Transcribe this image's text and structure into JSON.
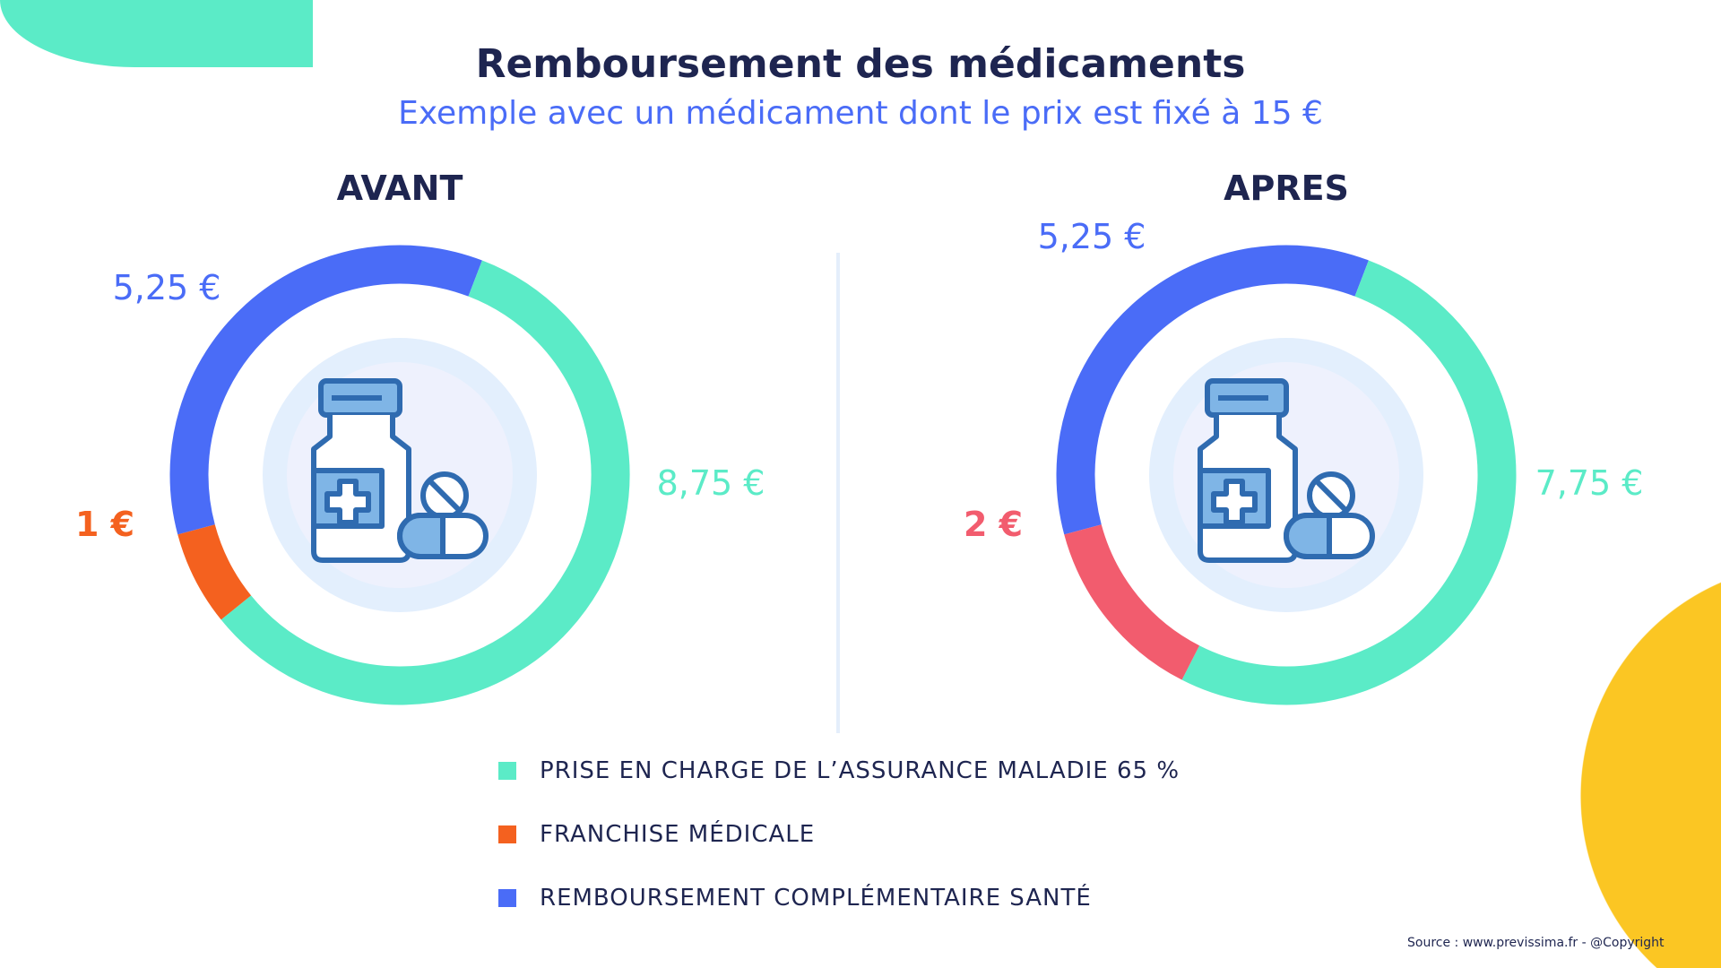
{
  "title": "Remboursement des médicaments",
  "subtitle": "Exemple avec un médicament dont le prix est fixé à 15 €",
  "colors": {
    "teal": "#5BEBC7",
    "orange": "#F4611F",
    "blue": "#4A6CF7",
    "red": "#F25C6E",
    "navy": "#1E2550",
    "yellow": "#FBC623"
  },
  "chart_data": [
    {
      "type": "pie",
      "title": "AVANT",
      "unit": "€",
      "total": 15,
      "slices": [
        {
          "name": "Remboursement complémentaire santé",
          "value": 5.25,
          "label": "5,25 €",
          "color": "#4A6CF7"
        },
        {
          "name": "Prise en charge de l'Assurance Maladie 65 %",
          "value": 8.75,
          "label": "8,75 €",
          "color": "#5BEBC7"
        },
        {
          "name": "Franchise médicale",
          "value": 1,
          "label": "1 €",
          "color": "#F4611F"
        }
      ]
    },
    {
      "type": "pie",
      "title": "APRES",
      "unit": "€",
      "total": 15,
      "slices": [
        {
          "name": "Remboursement complémentaire santé",
          "value": 5.25,
          "label": "5,25 €",
          "color": "#4A6CF7"
        },
        {
          "name": "Prise en charge de l'Assurance Maladie 65 %",
          "value": 7.75,
          "label": "7,75 €",
          "color": "#5BEBC7"
        },
        {
          "name": "Franchise médicale",
          "value": 2,
          "label": "2 €",
          "color": "#F25C6E"
        }
      ]
    }
  ],
  "legend": [
    {
      "label": "PRISE EN CHARGE DE L’ASSURANCE MALADIE 65 %",
      "color": "#5BEBC7"
    },
    {
      "label": "FRANCHISE MÉDICALE",
      "color": "#F4611F"
    },
    {
      "label": "REMBOURSEMENT COMPLÉMENTAIRE SANTÉ",
      "color": "#4A6CF7"
    }
  ],
  "source": "Source : www.previssima.fr - @Copyright"
}
